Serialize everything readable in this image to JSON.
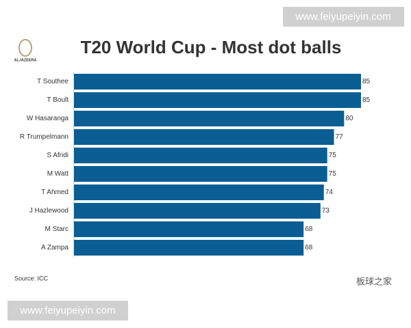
{
  "chart_data": {
    "type": "bar",
    "orientation": "horizontal",
    "title": "T20 World Cup - Most dot balls",
    "logo_text": "ALJAZEERA",
    "source": "Source: ICC",
    "watermarks": [
      "www.feiyupeiyin.com",
      "www.feiyupeiyin.com",
      "板球之家"
    ],
    "categories": [
      "T Southee",
      "T Boult",
      "W Hasaranga",
      "R Trumpelmann",
      "S Afridi",
      "M Watt",
      "T Ahmed",
      "J Hazlewood",
      "M Starc",
      "A Zampa"
    ],
    "values": [
      85,
      85,
      80,
      77,
      75,
      75,
      74,
      73,
      68,
      68
    ],
    "color": "#0b5e93",
    "xlim": [
      0,
      85
    ]
  }
}
